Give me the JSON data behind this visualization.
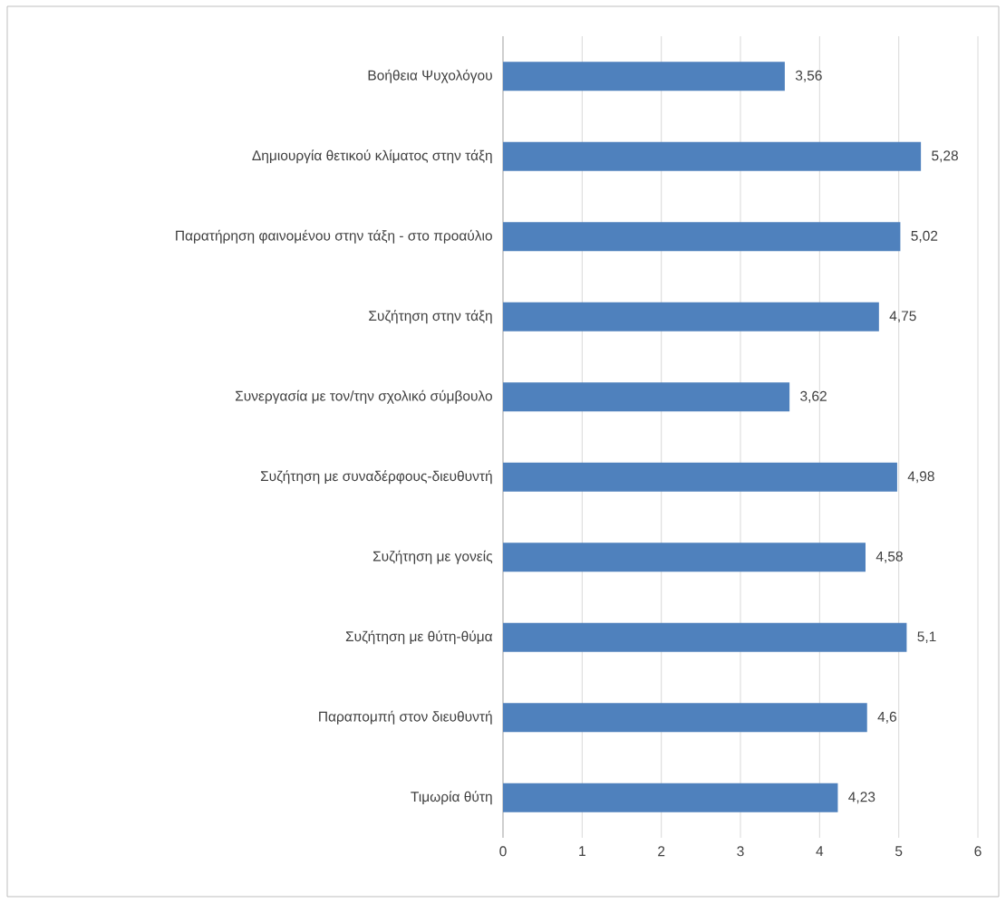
{
  "chart_data": {
    "type": "bar",
    "orientation": "horizontal",
    "categories": [
      "Βοήθεια Ψυχολόγου",
      "Δημιουργία θετικού κλίματος στην τάξη",
      "Παρατήρηση φαινομένου στην τάξη - στο προαύλιο",
      "Συζήτηση στην τάξη",
      "Συνεργασία με τον/την σχολικό σύμβουλο",
      "Συζήτηση με συναδέρφους-διευθυντή",
      "Συζήτηση με γονείς",
      "Συζήτηση με θύτη-θύμα",
      "Παραπομπή στον διευθυντή",
      "Τιμωρία θύτη"
    ],
    "values": [
      3.56,
      5.28,
      5.02,
      4.75,
      3.62,
      4.98,
      4.58,
      5.1,
      4.6,
      4.23
    ],
    "value_labels": [
      "3,56",
      "5,28",
      "5,02",
      "4,75",
      "3,62",
      "4,98",
      "4,58",
      "5,1",
      "4,6",
      "4,23"
    ],
    "color": "#4f81bd",
    "xlim": [
      0,
      6
    ],
    "xticks": [
      0,
      1,
      2,
      3,
      4,
      5,
      6
    ],
    "grid": "x"
  }
}
